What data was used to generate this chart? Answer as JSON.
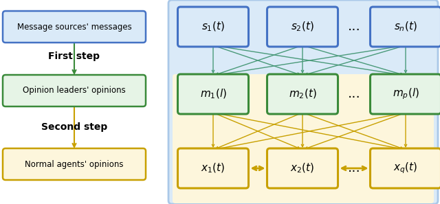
{
  "fig_width": 6.4,
  "fig_height": 2.97,
  "dpi": 100,
  "gd": "#3a8a3a",
  "bd": "#4472c4",
  "yd": "#c8a000",
  "blue_bg_fc": "#daeaf8",
  "blue_bg_ec": "#aac8e8",
  "yellow_bg_fc": "#fdf6dc",
  "left_box_blue_fc": "#daeaf8",
  "left_box_green_fc": "#e6f4e6",
  "left_box_yellow_fc": "#fdf6dc",
  "s_fc": "#daeaf8",
  "m_fc": "#e6f4e6",
  "x_fc": "#fdf6dc",
  "s_labels": [
    "$s_1(t)$",
    "$s_2(t)$",
    "$s_n(t)$"
  ],
  "m_labels": [
    "$m_1(l)$",
    "$m_2(t)$",
    "$m_p(l)$"
  ],
  "x_labels": [
    "$x_1(t)$",
    "$x_2(t)$",
    "$x_q(t)$"
  ]
}
